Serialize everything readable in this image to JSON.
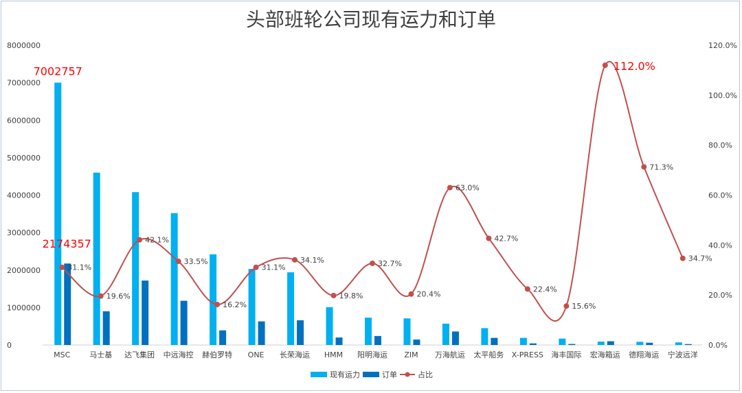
{
  "chart_data": {
    "type": "bar",
    "title": "头部班轮公司现有运力和订单",
    "categories": [
      "MSC",
      "马士基",
      "达飞集团",
      "中远海控",
      "赫伯罗特",
      "ONE",
      "长荣海运",
      "HMM",
      "阳明海运",
      "ZIM",
      "万海航运",
      "太平船务",
      "X-PRESS",
      "海丰国际",
      "宏海箱运",
      "德翔海运",
      "宁波远洋"
    ],
    "series": [
      {
        "name": "现有运力",
        "type": "bar",
        "axis": "left",
        "color": "#00b0f0",
        "values": [
          7002757,
          4600000,
          4080000,
          3520000,
          2420000,
          2030000,
          1940000,
          1010000,
          730000,
          710000,
          570000,
          450000,
          190000,
          170000,
          90000,
          85000,
          70000
        ]
      },
      {
        "name": "订单",
        "type": "bar",
        "axis": "left",
        "color": "#0070c0",
        "values": [
          2174357,
          900000,
          1720000,
          1180000,
          390000,
          630000,
          660000,
          200000,
          240000,
          145000,
          360000,
          190000,
          43000,
          27000,
          100000,
          60000,
          24000
        ]
      },
      {
        "name": "占比",
        "type": "line",
        "axis": "right",
        "color": "#c0504d",
        "values": [
          0.311,
          0.196,
          0.421,
          0.335,
          0.162,
          0.311,
          0.341,
          0.198,
          0.327,
          0.204,
          0.63,
          0.427,
          0.224,
          0.156,
          1.12,
          0.713,
          0.347
        ],
        "labels": [
          "31.1%",
          "19.6%",
          "42.1%",
          "33.5%",
          "16.2%",
          "31.1%",
          "34.1%",
          "19.8%",
          "32.7%",
          "20.4%",
          "63.0%",
          "42.7%",
          "22.4%",
          "15.6%",
          "112.0%",
          "71.3%",
          "34.7%"
        ]
      }
    ],
    "bar_labels": {
      "existing_0": "7002757",
      "order_0": "2174357"
    },
    "y_left": {
      "min": 0,
      "max": 8000000,
      "ticks": [
        "0",
        "1000000",
        "2000000",
        "3000000",
        "4000000",
        "5000000",
        "6000000",
        "7000000",
        "8000000"
      ]
    },
    "y_right": {
      "min": 0,
      "max": 1.2,
      "ticks": [
        "0.0%",
        "20.0%",
        "40.0%",
        "60.0%",
        "80.0%",
        "100.0%",
        "120.0%"
      ]
    },
    "grid": false,
    "legend_position": "bottom"
  }
}
